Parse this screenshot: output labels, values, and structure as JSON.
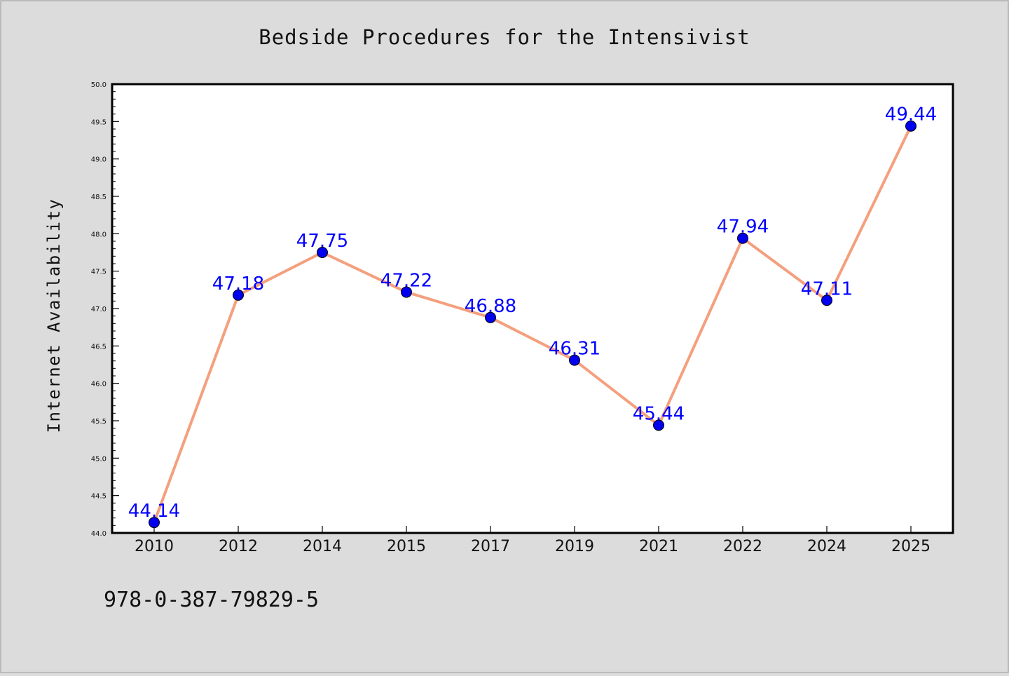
{
  "chart_data": {
    "type": "line",
    "title": "Bedside Procedures for the Intensivist",
    "xlabel": "",
    "ylabel": "Internet Availability",
    "categories": [
      "2010",
      "2012",
      "2014",
      "2015",
      "2017",
      "2019",
      "2021",
      "2022",
      "2024",
      "2025"
    ],
    "series": [
      {
        "values": [
          44.14,
          47.18,
          47.75,
          47.22,
          46.88,
          46.31,
          45.44,
          47.94,
          47.11,
          49.44
        ]
      }
    ],
    "data_labels": [
      "44.14",
      "47.18",
      "47.75",
      "47.22",
      "46.88",
      "46.31",
      "45.44",
      "47.94",
      "47.11",
      "49.44"
    ],
    "ylim": [
      44.0,
      50.0
    ],
    "yticks": [
      "44.0",
      "44.5",
      "45.0",
      "45.5",
      "46.0",
      "46.5",
      "47.0",
      "47.5",
      "48.0",
      "48.5",
      "49.0",
      "49.5",
      "50.0"
    ],
    "grid": false,
    "legend": "none",
    "colors": {
      "line": "#f4a07e",
      "marker": "#0000ee",
      "label": "#0000ff",
      "background": "#dcdcdc",
      "plot_background": "#ffffff"
    }
  },
  "footer": {
    "isbn": "978-0-387-79829-5"
  }
}
